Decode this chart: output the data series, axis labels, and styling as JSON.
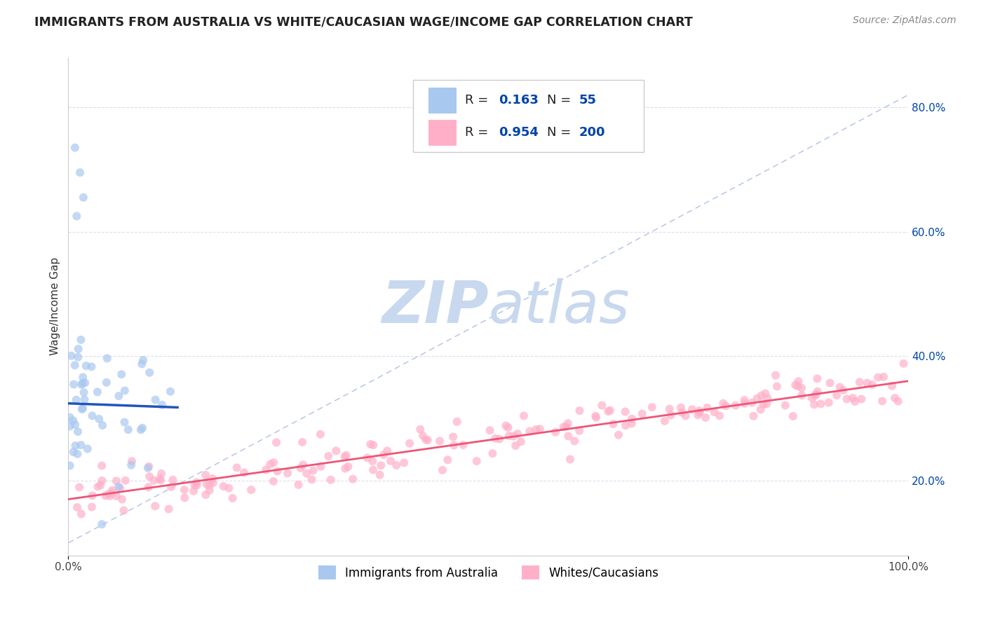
{
  "title": "IMMIGRANTS FROM AUSTRALIA VS WHITE/CAUCASIAN WAGE/INCOME GAP CORRELATION CHART",
  "source": "Source: ZipAtlas.com",
  "ylabel": "Wage/Income Gap",
  "xlim": [
    0,
    1
  ],
  "ylim": [
    0.08,
    0.88
  ],
  "y_ticks_right": [
    0.2,
    0.4,
    0.6,
    0.8
  ],
  "y_tick_labels_right": [
    "20.0%",
    "40.0%",
    "60.0%",
    "80.0%"
  ],
  "blue_R": 0.163,
  "blue_N": 55,
  "pink_R": 0.954,
  "pink_N": 200,
  "blue_color": "#A8C8F0",
  "pink_color": "#FFB0C8",
  "blue_line_color": "#2255BB",
  "pink_line_color": "#EE5577",
  "ref_line_color": "#AABBDD",
  "watermark_zip_color": "#C8D8EE",
  "watermark_atlas_color": "#C8D8EE",
  "background_color": "#FFFFFF",
  "grid_color": "#DDDDEE",
  "legend_R_color": "#0044AA",
  "legend_N_color": "#0044AA",
  "title_color": "#222222",
  "source_color": "#888888",
  "seed": 7
}
